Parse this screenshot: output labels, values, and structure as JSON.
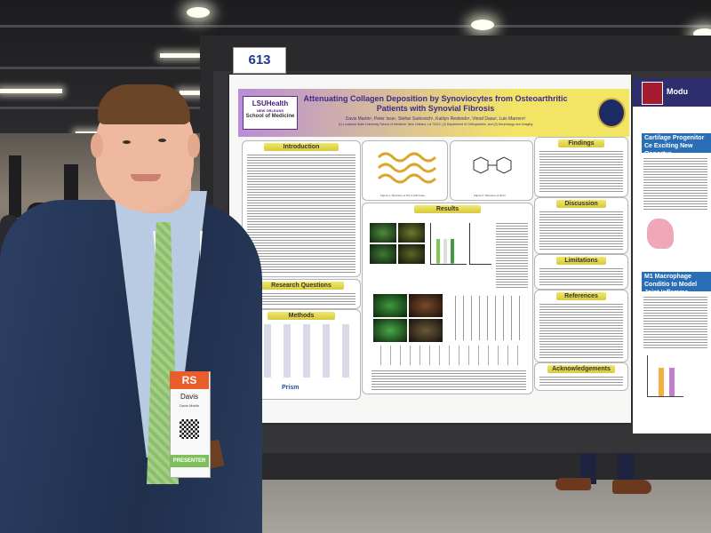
{
  "scene": {
    "poster_number": "613"
  },
  "poster": {
    "logo_line1": "LSUHealth",
    "logo_line2": "NEW ORLEANS",
    "logo_line3": "School of Medicine",
    "title": "Attenuating Collagen Deposition by Synoviocytes from Osteoarthritic Patients with Synovial Fibrosis",
    "authors": "Davis Martin¹, Peter Issa¹, Stefan Sarkovich¹, Kaitlyn Redondo¹, Vinod Dasa², Luis Marrero²",
    "affiliations": "(1) Louisiana State University School of Medicine, New Orleans, LA 70112, (2) Department of Orthopaedics, and (3) Morphology and Imaging",
    "sections": {
      "introduction": "Introduction",
      "research_questions": "Research Questions",
      "methods": "Methods",
      "results": "Results",
      "findings": "Findings",
      "discussion": "Discussion",
      "limitations": "Limitations",
      "references": "References",
      "acknowledgements": "Acknowledgements"
    },
    "fig1_caption": "Figure 1. Structure of CO-1 with Fuse",
    "fig2_caption": "Figure 2. Structure of HUO",
    "prism_label": "Prism"
  },
  "side_poster": {
    "title_fragment": "Modu",
    "header1": "Cartilage Progenitor Ce Exciting New Opportur",
    "header2": "M1 Macrophage Conditio to Model Joint Inflamma"
  },
  "badge": {
    "header": "RS",
    "name": "Davis",
    "subtitle": "Davis Martin",
    "footer": "PRESENTER"
  }
}
